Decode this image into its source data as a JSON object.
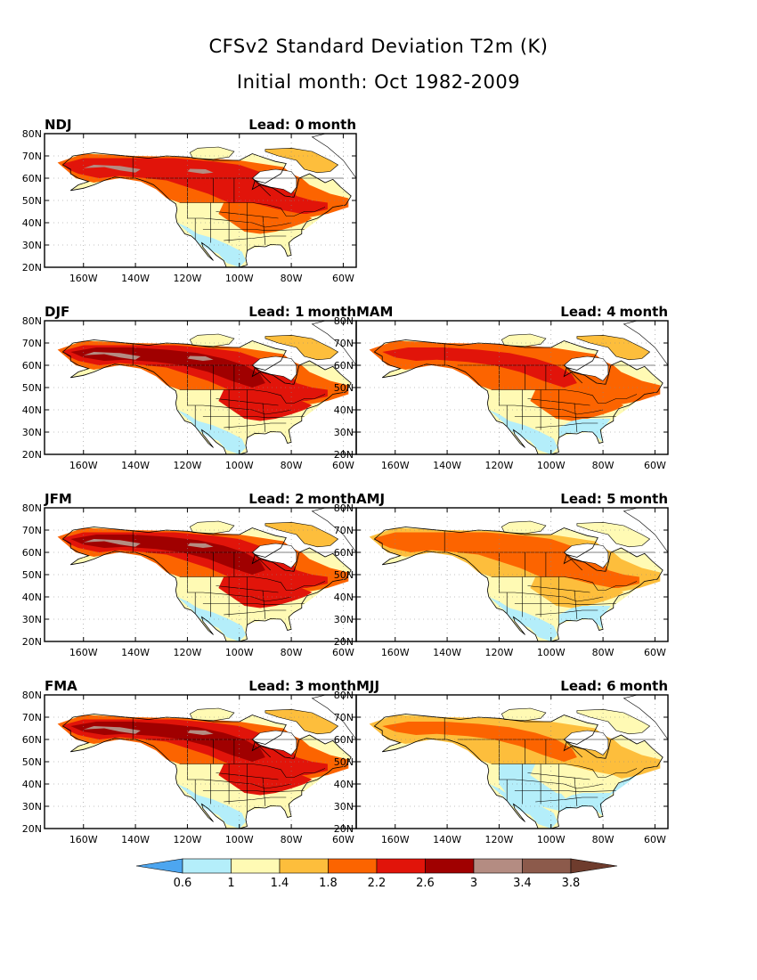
{
  "header": {
    "title": "CFSv2 Standard Deviation T2m (K)",
    "subtitle": "Initial month: Oct 1982-2009"
  },
  "chart_data": {
    "type": "heatmap",
    "variable": "T2m standard deviation",
    "units": "K",
    "lat_ticks": [
      "20N",
      "30N",
      "40N",
      "50N",
      "60N",
      "70N",
      "80N"
    ],
    "lon_ticks": [
      "160W",
      "140W",
      "120W",
      "100W",
      "80W",
      "60W"
    ],
    "lat_range": [
      20,
      80
    ],
    "lon_range": [
      -175,
      -55
    ],
    "colorbar": {
      "levels": [
        "0.6",
        "1",
        "1.4",
        "1.8",
        "2.2",
        "2.6",
        "3",
        "3.4",
        "3.8"
      ],
      "colors": [
        "#4da6f0",
        "#b4eefa",
        "#fffab4",
        "#fdbe3c",
        "#fc6400",
        "#e1140a",
        "#a00000",
        "#b48c82",
        "#8c5a4b",
        "#6e3c2d"
      ]
    },
    "panels": [
      {
        "season": "NDJ",
        "lead_text": "Lead: 0",
        "lead_unit": "month",
        "lead": 0,
        "intensity": 2
      },
      {
        "season": "DJF",
        "lead_text": "Lead: 1",
        "lead_unit": "month",
        "lead": 1,
        "intensity": 3
      },
      {
        "season": "MAM",
        "lead_text": "Lead: 4",
        "lead_unit": "month",
        "lead": 4,
        "intensity": 1
      },
      {
        "season": "JFM",
        "lead_text": "Lead: 2",
        "lead_unit": "month",
        "lead": 2,
        "intensity": 3
      },
      {
        "season": "AMJ",
        "lead_text": "Lead: 5",
        "lead_unit": "month",
        "lead": 5,
        "intensity": 0
      },
      {
        "season": "FMA",
        "lead_text": "Lead: 3",
        "lead_unit": "month",
        "lead": 3,
        "intensity": 3
      },
      {
        "season": "MJJ",
        "lead_text": "Lead: 6",
        "lead_unit": "month",
        "lead": 6,
        "intensity": -1
      }
    ]
  }
}
